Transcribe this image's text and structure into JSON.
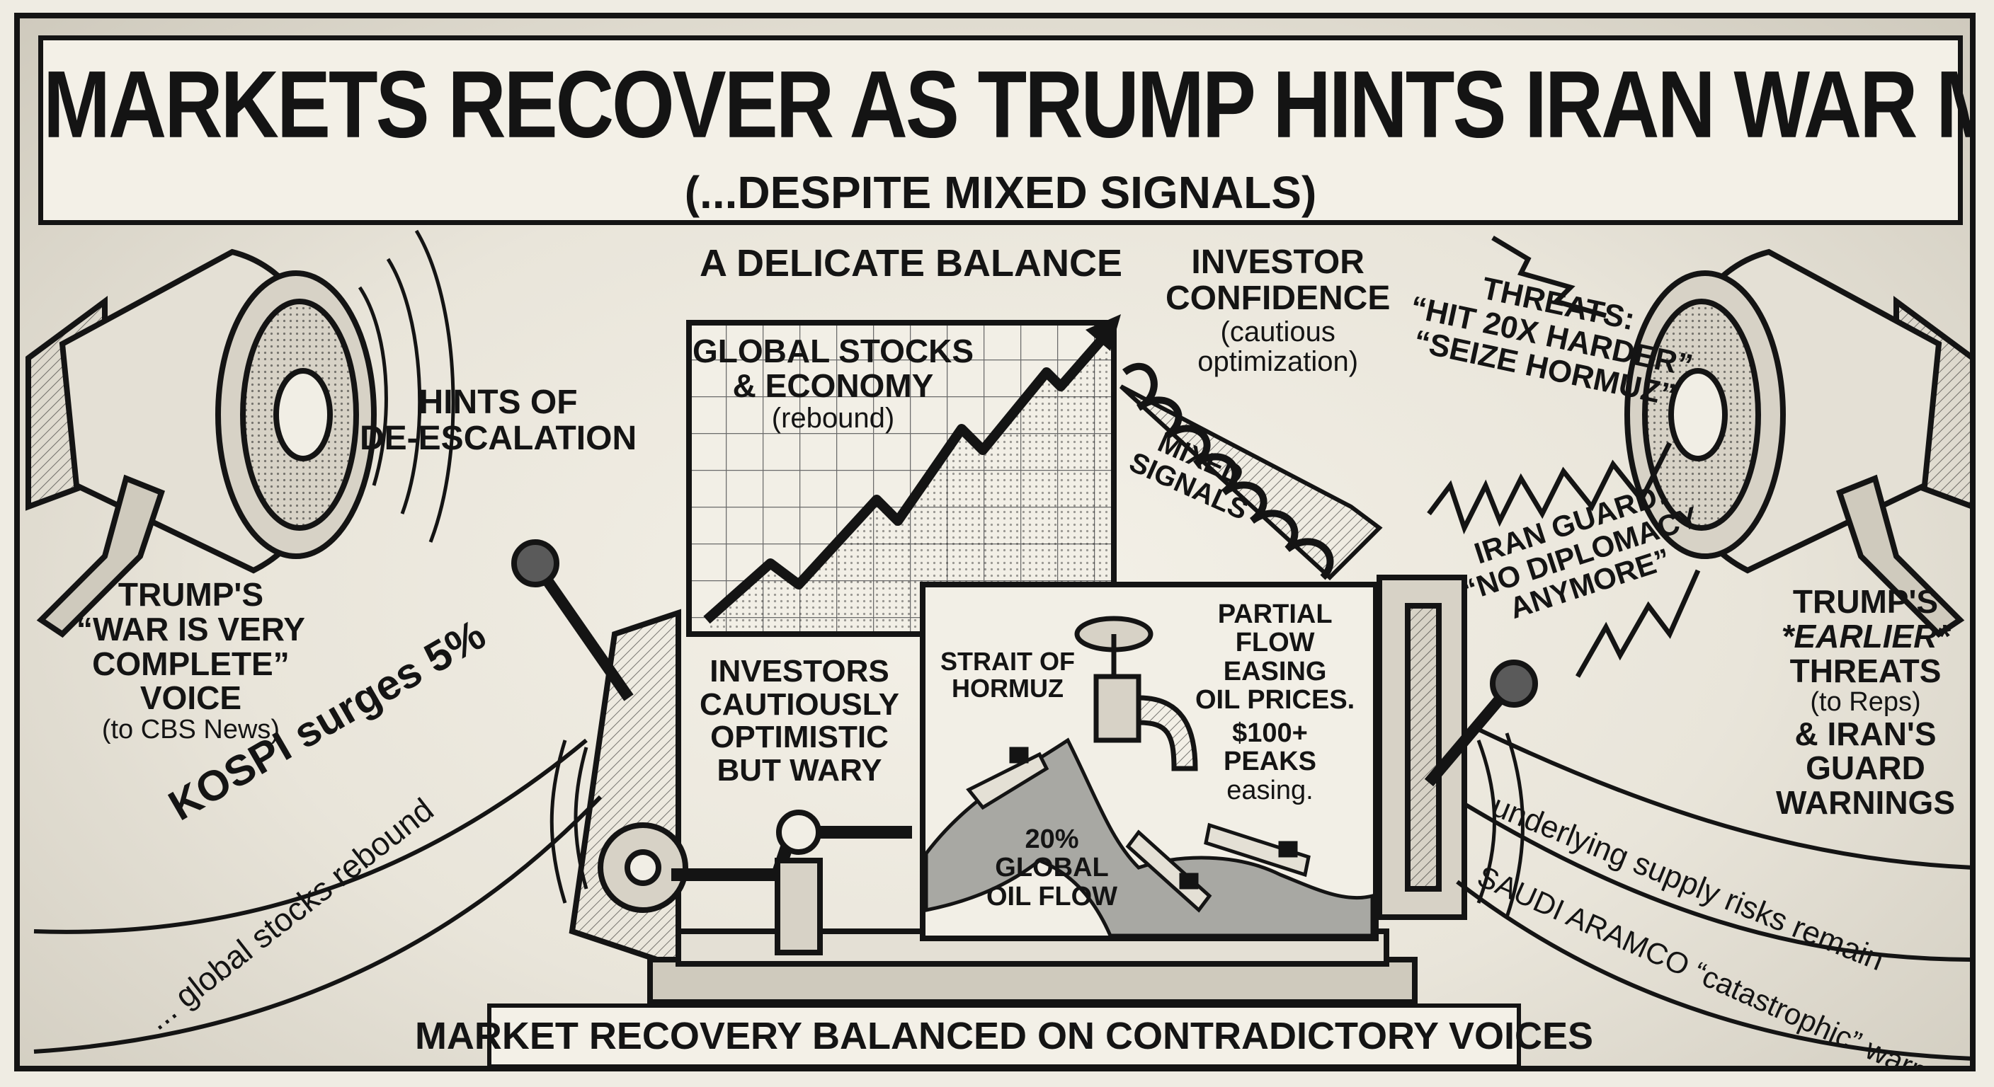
{
  "headline": "MARKETS RECOVER AS TRUMP HINTS IRAN WAR MAY END SOON",
  "subtitle": "(...DESPITE MIXED SIGNALS)",
  "balance_label": "A DELICATE BALANCE",
  "chart_panel": {
    "title_line1": "GLOBAL STOCKS",
    "title_line2": "& ECONOMY",
    "note": "(rebound)"
  },
  "investor_confidence": {
    "line1": "INVESTOR",
    "line2": "CONFIDENCE",
    "note_line1": "(cautious",
    "note_line2": "optimization)"
  },
  "mixed_signals": {
    "line1": "MIXED",
    "line2": "SIGNALS"
  },
  "left_voice": {
    "hint_line1": "HINTS OF",
    "hint_line2": "DE-ESCALATION",
    "name_line1": "TRUMP'S",
    "name_line2": "“WAR IS VERY",
    "name_line3": "COMPLETE”",
    "name_line4": "VOICE",
    "source": "(to CBS News)"
  },
  "left_stream": {
    "kospi": "KOSPI surges 5%",
    "rebound": "... global stocks rebound"
  },
  "right_voice": {
    "threats_line1": "THREATS:",
    "threats_line2": "“HIT 20X HARDER”",
    "threats_line3": "“SEIZE HORMUZ”",
    "guard_line1": "IRAN GUARD:",
    "guard_line2": "“NO DIPLOMACY",
    "guard_line3": "ANYMORE”",
    "name_line1": "TRUMP'S",
    "name_line2": "*EARLIER*",
    "name_line3": "THREATS",
    "name_line4": "(to Reps)",
    "name_line5": "& IRAN'S",
    "name_line6": "GUARD",
    "name_line7": "WARNINGS"
  },
  "right_stream": {
    "supply": "underlying supply risks remain",
    "aramco": "SAUDI ARAMCO “catastrophic” warn"
  },
  "investors": {
    "line1": "INVESTORS",
    "line2": "CAUTIOUSLY",
    "line3": "OPTIMISTIC",
    "line4": "BUT WARY"
  },
  "hormuz_panel": {
    "strait_line1": "STRAIT OF",
    "strait_line2": "HORMUZ",
    "flow_line1": "PARTIAL",
    "flow_line2": "FLOW",
    "flow_line3": "EASING",
    "flow_line4": "OIL PRICES.",
    "peaks_line1": "$100+",
    "peaks_line2": "PEAKS",
    "peaks_line3": "easing.",
    "share_line1": "20%",
    "share_line2": "GLOBAL",
    "share_line3": "OIL FLOW"
  },
  "caption": "MARKET RECOVERY BALANCED ON CONTRADICTORY VOICES",
  "colors": {
    "ink": "#141414",
    "paper": "#efece3",
    "water": "#a8a8a3",
    "grid": "#6a6a6a"
  }
}
